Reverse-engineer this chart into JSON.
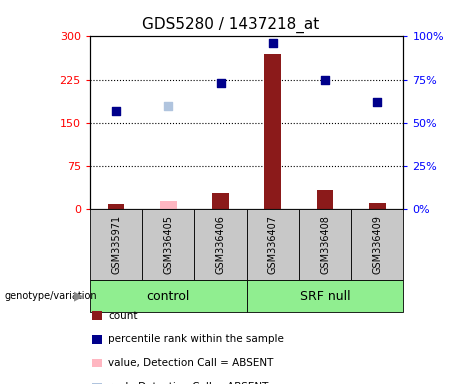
{
  "title": "GDS5280 / 1437218_at",
  "samples": [
    "GSM335971",
    "GSM336405",
    "GSM336406",
    "GSM336407",
    "GSM336408",
    "GSM336409"
  ],
  "count_values": [
    10,
    15,
    28,
    270,
    33,
    11
  ],
  "count_absent": [
    false,
    true,
    false,
    false,
    false,
    false
  ],
  "rank_values_right": [
    57,
    60,
    73,
    96,
    75,
    62
  ],
  "rank_absent": [
    false,
    true,
    false,
    false,
    false,
    false
  ],
  "ylim_left": [
    0,
    300
  ],
  "ylim_right": [
    0,
    100
  ],
  "yticks_left": [
    0,
    75,
    150,
    225,
    300
  ],
  "yticks_right": [
    0,
    25,
    50,
    75,
    100
  ],
  "bar_color_present": "#8B1A1A",
  "bar_color_absent": "#FFB6C1",
  "dot_color_present": "#00008B",
  "dot_color_absent": "#B0C4DE",
  "bg_color_sample": "#C8C8C8",
  "bg_color_group": "#90EE90",
  "groups": [
    {
      "name": "control",
      "start": 0,
      "end": 3
    },
    {
      "name": "SRF null",
      "start": 3,
      "end": 6
    }
  ],
  "legend_items": [
    {
      "label": "count",
      "color": "#8B1A1A"
    },
    {
      "label": "percentile rank within the sample",
      "color": "#00008B"
    },
    {
      "label": "value, Detection Call = ABSENT",
      "color": "#FFB6C1"
    },
    {
      "label": "rank, Detection Call = ABSENT",
      "color": "#B0C4DE"
    }
  ],
  "title_fontsize": 11,
  "axis_label_fontsize": 7,
  "tick_fontsize": 8,
  "sample_fontsize": 7,
  "group_fontsize": 9,
  "legend_fontsize": 7.5
}
